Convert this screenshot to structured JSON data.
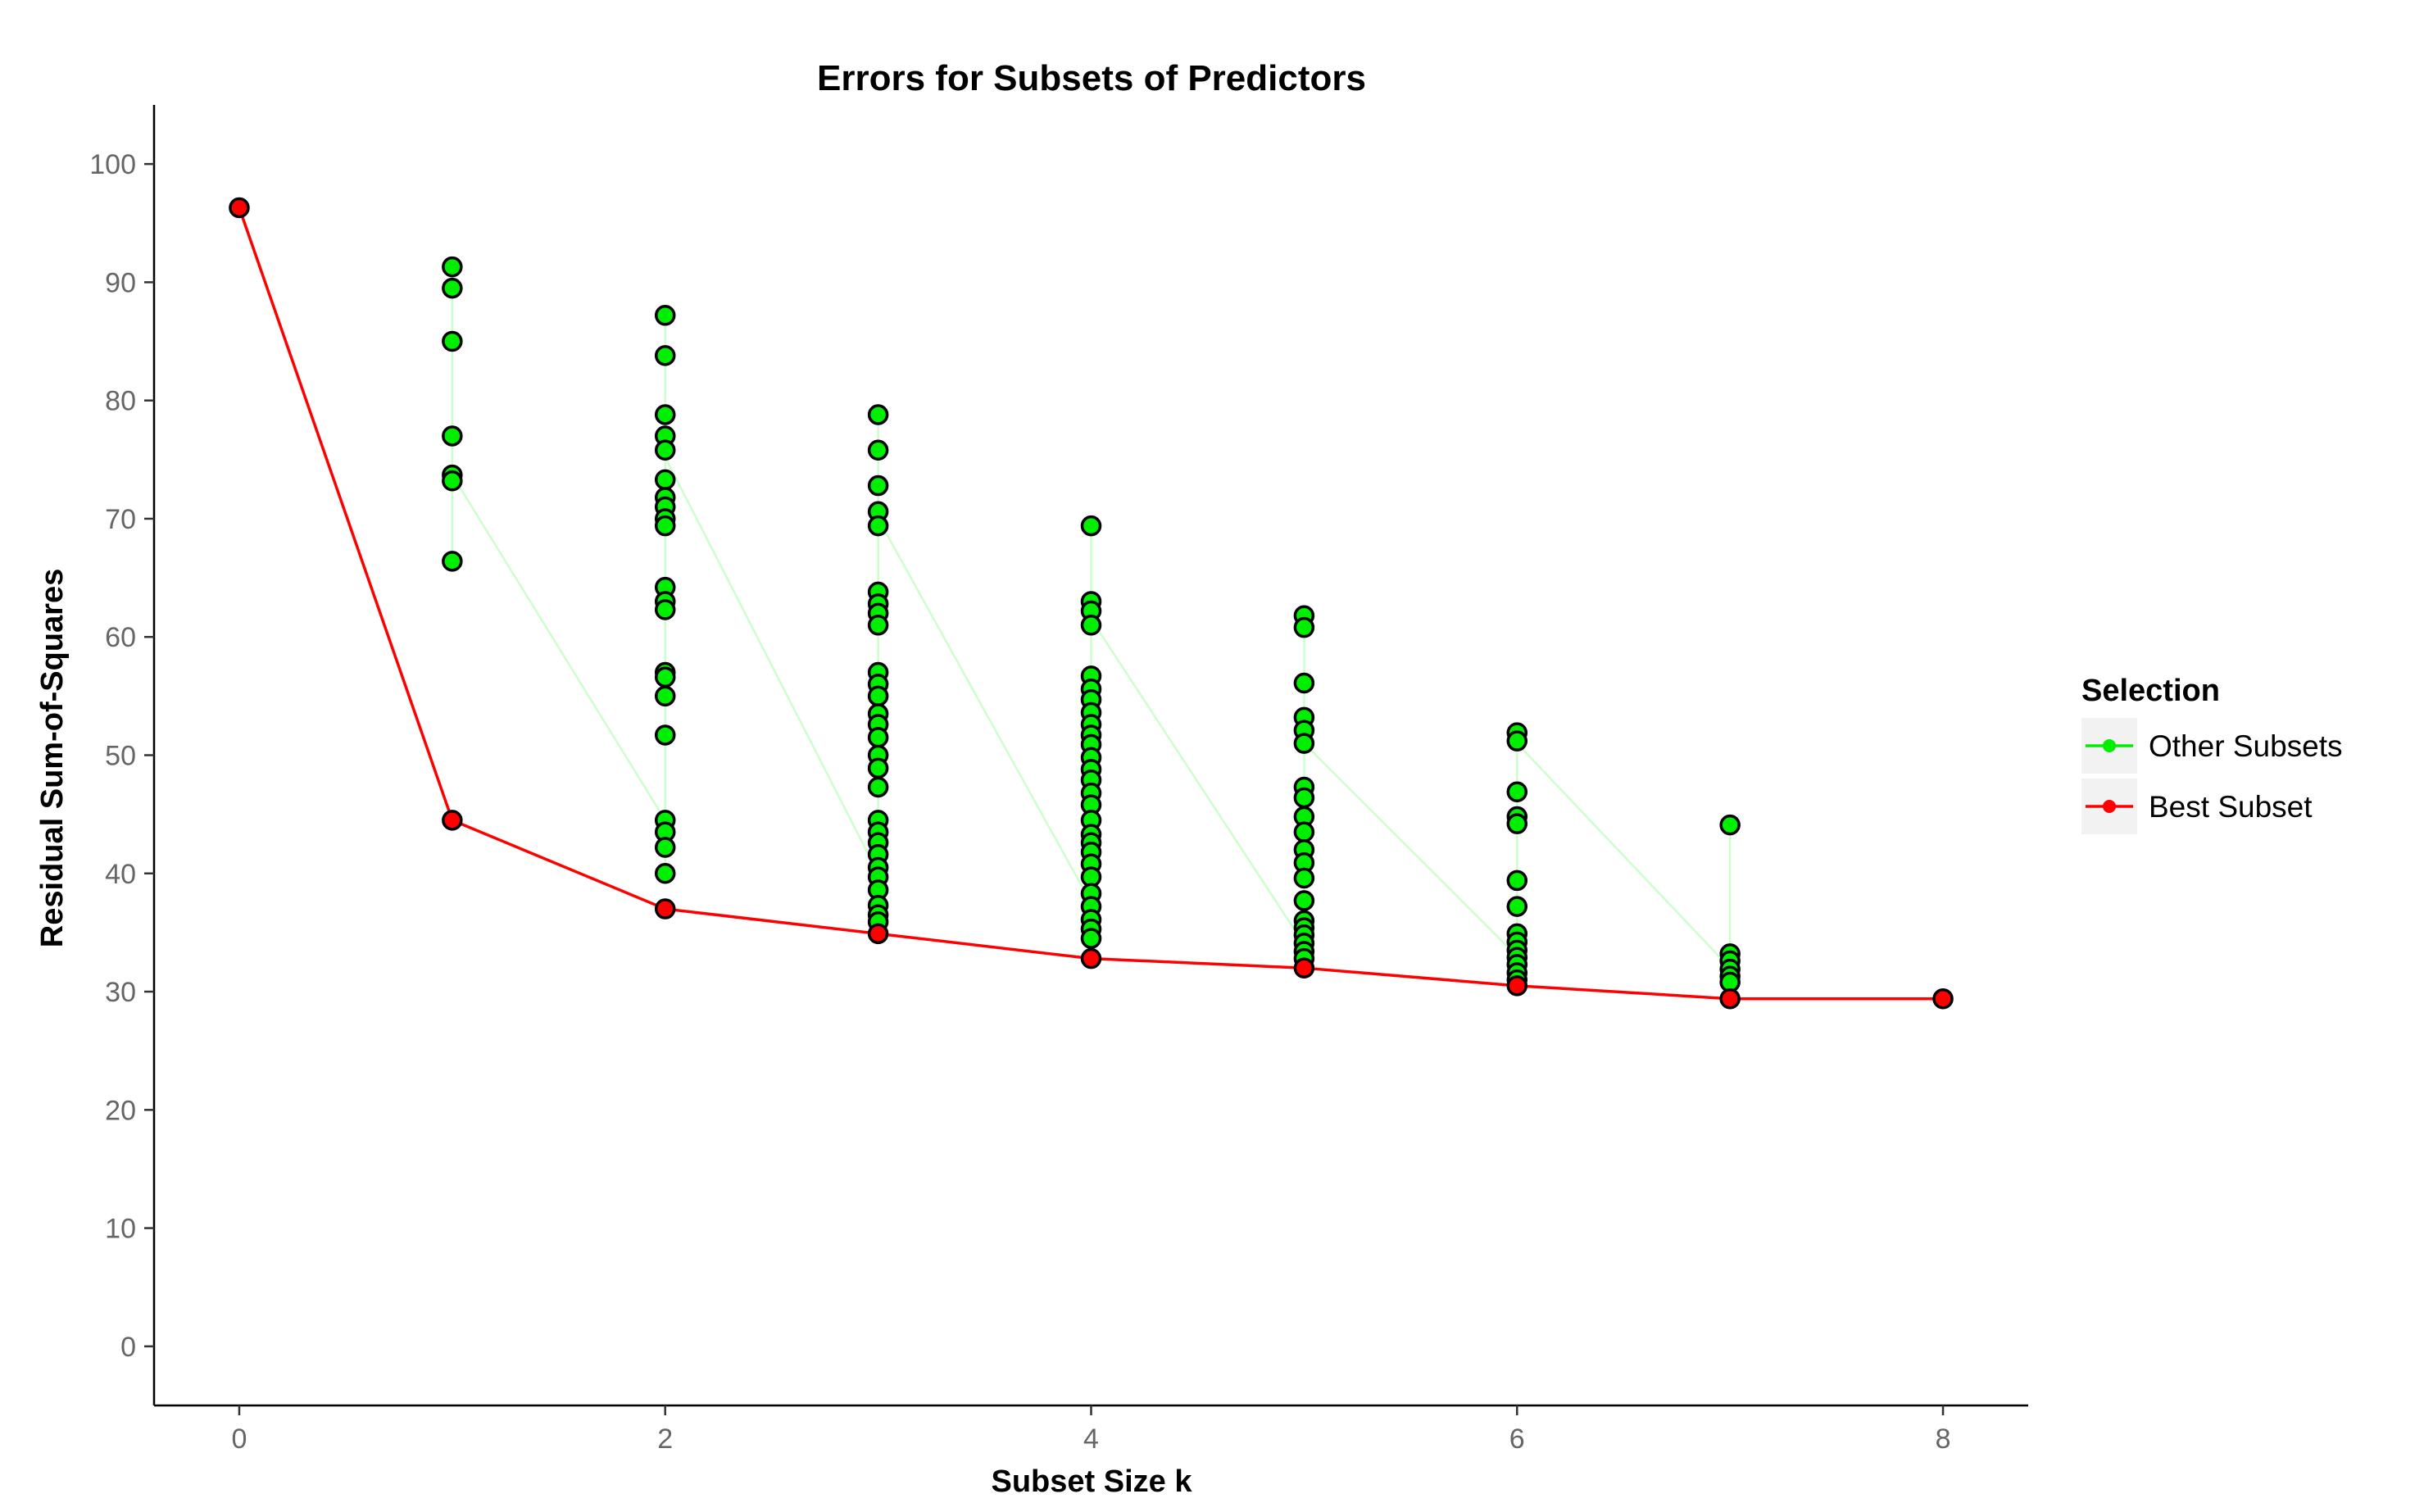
{
  "chart_data": {
    "type": "scatter",
    "title": "Errors for Subsets of Predictors",
    "xlabel": "Subset Size k",
    "ylabel": "Residual Sum-of-Squares",
    "xlim": [
      -0.4,
      8.4
    ],
    "ylim": [
      -5,
      105
    ],
    "xticks": [
      0,
      2,
      4,
      6,
      8
    ],
    "yticks": [
      0,
      10,
      20,
      30,
      40,
      50,
      60,
      70,
      80,
      90,
      100
    ],
    "grid": false,
    "legend": {
      "title": "Selection",
      "placement": "right",
      "entries": [
        {
          "label": "Other Subsets",
          "color": "#00ee00"
        },
        {
          "label": "Best Subset",
          "color": "#ff0000"
        }
      ]
    },
    "series": [
      {
        "name": "Other Subsets",
        "color": "#00ee00",
        "points": [
          {
            "k": 1,
            "values": [
              91.3,
              89.5,
              85.0,
              77.0,
              73.7,
              73.2,
              66.4
            ]
          },
          {
            "k": 2,
            "values": [
              87.2,
              83.8,
              78.8,
              77.0,
              75.8,
              73.3,
              71.8,
              71.0,
              70.0,
              69.4,
              64.2,
              63.0,
              62.3,
              57.0,
              56.6,
              55.0,
              51.7,
              44.5,
              43.5,
              42.2,
              40.0
            ]
          },
          {
            "k": 3,
            "values": [
              78.8,
              75.8,
              72.8,
              70.6,
              69.4,
              63.8,
              62.8,
              62.0,
              61.0,
              57.0,
              56.0,
              55.0,
              53.5,
              52.6,
              51.5,
              50.0,
              48.9,
              47.3,
              44.5,
              43.5,
              42.6,
              41.6,
              40.5,
              39.7,
              38.6,
              37.3,
              36.5,
              35.9
            ]
          },
          {
            "k": 4,
            "values": [
              69.4,
              63.0,
              62.2,
              61.0,
              56.7,
              55.6,
              54.7,
              53.6,
              52.6,
              51.7,
              50.9,
              49.8,
              48.8,
              47.9,
              46.8,
              45.8,
              44.5,
              43.3,
              42.6,
              41.8,
              40.8,
              39.7,
              38.3,
              37.2,
              36.1,
              35.3,
              34.5
            ]
          },
          {
            "k": 5,
            "values": [
              61.8,
              60.8,
              56.1,
              53.2,
              52.1,
              51.0,
              47.3,
              46.4,
              44.8,
              43.5,
              42.0,
              40.9,
              39.6,
              37.7,
              36.0,
              35.4,
              34.8,
              34.1,
              33.4,
              32.8
            ]
          },
          {
            "k": 6,
            "values": [
              51.9,
              51.2,
              46.9,
              44.8,
              44.2,
              39.4,
              37.2,
              34.9,
              34.2,
              33.5,
              32.9,
              32.3,
              31.6,
              31.0
            ]
          },
          {
            "k": 7,
            "values": [
              44.1,
              33.2,
              32.6,
              31.9,
              31.3,
              30.8
            ]
          }
        ]
      },
      {
        "name": "Best Subset",
        "color": "#ff0000",
        "x": [
          0,
          1,
          2,
          3,
          4,
          5,
          6,
          7,
          8
        ],
        "y": [
          96.3,
          44.5,
          37.0,
          34.9,
          32.8,
          32.0,
          30.5,
          29.4,
          29.4
        ]
      }
    ],
    "connectors": [
      {
        "from": [
          1,
          73.7
        ],
        "to": [
          2,
          44.5
        ]
      },
      {
        "from": [
          2,
          75.2
        ],
        "to": [
          3,
          40.0
        ]
      },
      {
        "from": [
          3,
          70.0
        ],
        "to": [
          4,
          37.5
        ]
      },
      {
        "from": [
          4,
          61.5
        ],
        "to": [
          5,
          34.0
        ]
      },
      {
        "from": [
          5,
          51.0
        ],
        "to": [
          6,
          33.0
        ]
      },
      {
        "from": [
          6,
          51.0
        ],
        "to": [
          7,
          32.0
        ]
      }
    ]
  }
}
